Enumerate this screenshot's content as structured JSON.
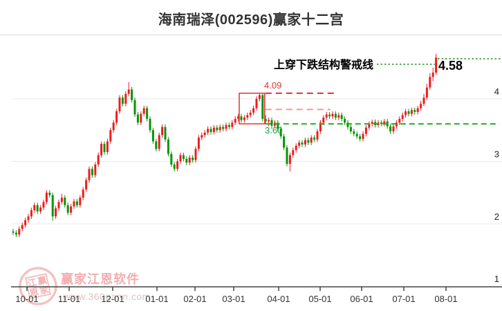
{
  "title": "海南瑞泽(002596)赢家十二宫",
  "annotations": {
    "warning_text": "上穿下跌结构警戒线",
    "peak_price_label": "4.58",
    "box_top_label": "4.09",
    "support_label": "3.60"
  },
  "y_axis": {
    "labels": [
      "4",
      "3",
      "2",
      "1"
    ]
  },
  "x_axis": {
    "labels": [
      "10-01",
      "11-01",
      "12-01",
      "01-01",
      "02-01",
      "03-01",
      "04-01",
      "05-01",
      "06-01",
      "07-01",
      "08-01"
    ]
  },
  "watermark": {
    "brand": "赢家江恩软件",
    "url": "www.360gann.com",
    "seal_chars": [
      "江",
      "赢",
      "恩",
      "家"
    ]
  },
  "colors": {
    "up_candle": "#ee1c1c",
    "down_candle": "#079407",
    "warning_line": "#1f8f1f",
    "support_line": "#22aa22",
    "box_line": "#e13232",
    "secondary_line": "#f19999",
    "gridline": "#e9e9e9",
    "axis": "#444444"
  },
  "chart_data": {
    "type": "candlestick",
    "title": "海南瑞泽(002596)赢家十二宫",
    "symbol": "002596",
    "stock_name": "海南瑞泽",
    "ylim": [
      1,
      5
    ],
    "y_ticks": [
      4,
      3,
      2,
      1
    ],
    "x_tick_labels": [
      "10-01",
      "11-01",
      "12-01",
      "01-01",
      "02-01",
      "03-01",
      "04-01",
      "05-01",
      "06-01",
      "07-01",
      "08-01"
    ],
    "grid": "horizontal-only",
    "overlays": {
      "warning_line": {
        "value": 4.58,
        "label": "4.58",
        "text": "上穿下跌结构警戒线"
      },
      "resistance_level": {
        "value": 4.09,
        "label": "4.09",
        "style": "dashed-red"
      },
      "secondary_level": {
        "value": 3.83,
        "style": "dashed-pink"
      },
      "support_level": {
        "value": 3.6,
        "label": "3.60",
        "style": "dashed-green"
      },
      "structure_box": {
        "top_value": 4.09,
        "bottom_value": 3.6,
        "start_index": 75,
        "end_index": 82
      }
    },
    "candles_format": [
      "open",
      "high",
      "low",
      "close"
    ],
    "candles": [
      [
        1.88,
        1.92,
        1.82,
        1.86
      ],
      [
        1.86,
        1.9,
        1.79,
        1.83
      ],
      [
        1.83,
        1.96,
        1.79,
        1.92
      ],
      [
        1.92,
        2.02,
        1.88,
        1.98
      ],
      [
        1.98,
        2.1,
        1.94,
        2.06
      ],
      [
        2.06,
        2.16,
        2.02,
        2.12
      ],
      [
        2.12,
        2.26,
        2.08,
        2.22
      ],
      [
        2.22,
        2.34,
        2.18,
        2.3
      ],
      [
        2.3,
        2.34,
        2.16,
        2.2
      ],
      [
        2.2,
        2.3,
        2.16,
        2.26
      ],
      [
        2.26,
        2.39,
        2.22,
        2.35
      ],
      [
        2.35,
        2.54,
        2.31,
        2.5
      ],
      [
        2.5,
        2.54,
        2.42,
        2.46
      ],
      [
        2.46,
        2.5,
        2.05,
        2.12
      ],
      [
        2.12,
        2.29,
        2.08,
        2.25
      ],
      [
        2.25,
        2.39,
        2.21,
        2.35
      ],
      [
        2.35,
        2.48,
        2.31,
        2.42
      ],
      [
        2.42,
        2.46,
        2.26,
        2.3
      ],
      [
        2.3,
        2.34,
        2.14,
        2.18
      ],
      [
        2.18,
        2.32,
        2.14,
        2.28
      ],
      [
        2.28,
        2.4,
        2.24,
        2.36
      ],
      [
        2.36,
        2.4,
        2.26,
        2.3
      ],
      [
        2.3,
        2.46,
        2.26,
        2.42
      ],
      [
        2.42,
        2.59,
        2.38,
        2.55
      ],
      [
        2.55,
        2.74,
        2.51,
        2.7
      ],
      [
        2.7,
        2.92,
        2.66,
        2.88
      ],
      [
        2.88,
        2.92,
        2.74,
        2.78
      ],
      [
        2.78,
        2.99,
        2.74,
        2.95
      ],
      [
        2.95,
        3.14,
        2.91,
        3.1
      ],
      [
        3.1,
        3.32,
        3.06,
        3.28
      ],
      [
        3.28,
        3.32,
        3.11,
        3.15
      ],
      [
        3.15,
        3.36,
        3.11,
        3.32
      ],
      [
        3.32,
        3.54,
        3.28,
        3.5
      ],
      [
        3.5,
        3.66,
        3.46,
        3.62
      ],
      [
        3.62,
        3.84,
        3.58,
        3.8
      ],
      [
        3.8,
        4.06,
        3.76,
        4.02
      ],
      [
        4.02,
        4.06,
        3.88,
        3.92
      ],
      [
        3.92,
        4.12,
        3.88,
        4.08
      ],
      [
        4.08,
        4.27,
        4.04,
        4.15
      ],
      [
        4.15,
        4.19,
        3.94,
        3.98
      ],
      [
        3.98,
        4.02,
        3.71,
        3.75
      ],
      [
        3.75,
        3.79,
        3.58,
        3.62
      ],
      [
        3.62,
        3.8,
        3.58,
        3.76
      ],
      [
        3.76,
        3.89,
        3.72,
        3.85
      ],
      [
        3.85,
        3.89,
        3.64,
        3.68
      ],
      [
        3.68,
        3.72,
        3.46,
        3.5
      ],
      [
        3.5,
        3.54,
        3.28,
        3.32
      ],
      [
        3.32,
        3.36,
        3.16,
        3.2
      ],
      [
        3.2,
        3.46,
        3.16,
        3.42
      ],
      [
        3.42,
        3.59,
        3.38,
        3.55
      ],
      [
        3.55,
        3.59,
        3.31,
        3.35
      ],
      [
        3.35,
        3.39,
        3.08,
        3.12
      ],
      [
        3.12,
        3.16,
        2.91,
        2.95
      ],
      [
        2.95,
        2.99,
        2.84,
        2.88
      ],
      [
        2.88,
        3.04,
        2.84,
        3.0
      ],
      [
        3.0,
        3.14,
        2.96,
        3.1
      ],
      [
        3.1,
        3.14,
        3.0,
        3.04
      ],
      [
        3.04,
        3.08,
        2.94,
        2.98
      ],
      [
        2.98,
        3.1,
        2.94,
        3.06
      ],
      [
        3.06,
        3.1,
        2.98,
        3.02
      ],
      [
        3.02,
        3.24,
        2.98,
        3.2
      ],
      [
        3.2,
        3.42,
        3.16,
        3.38
      ],
      [
        3.38,
        3.46,
        3.34,
        3.42
      ],
      [
        3.42,
        3.5,
        3.38,
        3.46
      ],
      [
        3.46,
        3.56,
        3.42,
        3.52
      ],
      [
        3.52,
        3.56,
        3.43,
        3.47
      ],
      [
        3.47,
        3.58,
        3.43,
        3.54
      ],
      [
        3.54,
        3.58,
        3.46,
        3.5
      ],
      [
        3.5,
        3.59,
        3.46,
        3.55
      ],
      [
        3.55,
        3.59,
        3.48,
        3.52
      ],
      [
        3.52,
        3.62,
        3.48,
        3.58
      ],
      [
        3.58,
        3.62,
        3.51,
        3.55
      ],
      [
        3.55,
        3.66,
        3.51,
        3.62
      ],
      [
        3.62,
        3.72,
        3.58,
        3.68
      ],
      [
        3.68,
        3.76,
        3.64,
        3.72
      ],
      [
        3.72,
        3.76,
        3.62,
        3.66
      ],
      [
        3.66,
        3.74,
        3.62,
        3.7
      ],
      [
        3.7,
        3.78,
        3.66,
        3.74
      ],
      [
        3.74,
        3.82,
        3.7,
        3.78
      ],
      [
        3.78,
        3.89,
        3.74,
        3.85
      ],
      [
        3.85,
        4.04,
        3.81,
        4.0
      ],
      [
        4.0,
        4.09,
        3.96,
        4.06
      ],
      [
        4.06,
        4.08,
        3.64,
        3.68
      ],
      [
        3.68,
        3.74,
        3.6,
        3.64
      ],
      [
        3.64,
        3.7,
        3.56,
        3.66
      ],
      [
        3.66,
        3.7,
        3.52,
        3.57
      ],
      [
        3.57,
        3.66,
        3.53,
        3.62
      ],
      [
        3.62,
        3.66,
        3.48,
        3.52
      ],
      [
        3.52,
        3.56,
        3.36,
        3.4
      ],
      [
        3.4,
        3.44,
        3.18,
        3.22
      ],
      [
        3.22,
        3.26,
        2.92,
        2.96
      ],
      [
        2.96,
        3.14,
        2.84,
        3.1
      ],
      [
        3.1,
        3.22,
        3.06,
        3.18
      ],
      [
        3.18,
        3.29,
        3.14,
        3.25
      ],
      [
        3.25,
        3.34,
        3.21,
        3.3
      ],
      [
        3.3,
        3.34,
        3.23,
        3.27
      ],
      [
        3.27,
        3.38,
        3.23,
        3.34
      ],
      [
        3.34,
        3.38,
        3.26,
        3.3
      ],
      [
        3.3,
        3.42,
        3.26,
        3.38
      ],
      [
        3.38,
        3.42,
        3.31,
        3.35
      ],
      [
        3.35,
        3.52,
        3.31,
        3.48
      ],
      [
        3.48,
        3.66,
        3.44,
        3.62
      ],
      [
        3.62,
        3.74,
        3.58,
        3.7
      ],
      [
        3.7,
        3.79,
        3.66,
        3.75
      ],
      [
        3.75,
        3.79,
        3.68,
        3.72
      ],
      [
        3.72,
        3.8,
        3.68,
        3.76
      ],
      [
        3.76,
        3.8,
        3.66,
        3.7
      ],
      [
        3.7,
        3.78,
        3.66,
        3.74
      ],
      [
        3.74,
        3.78,
        3.64,
        3.68
      ],
      [
        3.68,
        3.72,
        3.58,
        3.62
      ],
      [
        3.62,
        3.66,
        3.51,
        3.55
      ],
      [
        3.55,
        3.59,
        3.44,
        3.48
      ],
      [
        3.48,
        3.52,
        3.4,
        3.44
      ],
      [
        3.44,
        3.48,
        3.36,
        3.4
      ],
      [
        3.4,
        3.44,
        3.32,
        3.36
      ],
      [
        3.36,
        3.48,
        3.32,
        3.44
      ],
      [
        3.44,
        3.58,
        3.4,
        3.54
      ],
      [
        3.54,
        3.64,
        3.5,
        3.6
      ],
      [
        3.6,
        3.67,
        3.56,
        3.63
      ],
      [
        3.63,
        3.67,
        3.54,
        3.58
      ],
      [
        3.58,
        3.66,
        3.54,
        3.62
      ],
      [
        3.62,
        3.66,
        3.56,
        3.6
      ],
      [
        3.6,
        3.68,
        3.56,
        3.64
      ],
      [
        3.64,
        3.68,
        3.52,
        3.56
      ],
      [
        3.56,
        3.6,
        3.44,
        3.48
      ],
      [
        3.48,
        3.6,
        3.44,
        3.56
      ],
      [
        3.56,
        3.66,
        3.52,
        3.62
      ],
      [
        3.62,
        3.72,
        3.58,
        3.68
      ],
      [
        3.68,
        3.78,
        3.64,
        3.74
      ],
      [
        3.74,
        3.84,
        3.7,
        3.8
      ],
      [
        3.8,
        3.84,
        3.72,
        3.76
      ],
      [
        3.76,
        3.86,
        3.72,
        3.82
      ],
      [
        3.82,
        3.86,
        3.75,
        3.79
      ],
      [
        3.79,
        3.89,
        3.75,
        3.85
      ],
      [
        3.85,
        3.97,
        3.81,
        3.92
      ],
      [
        3.92,
        4.08,
        3.88,
        4.02
      ],
      [
        4.02,
        4.24,
        3.98,
        4.18
      ],
      [
        4.18,
        4.41,
        4.14,
        4.35
      ],
      [
        4.35,
        4.5,
        4.28,
        4.42
      ],
      [
        4.42,
        4.72,
        4.38,
        4.66
      ]
    ]
  }
}
